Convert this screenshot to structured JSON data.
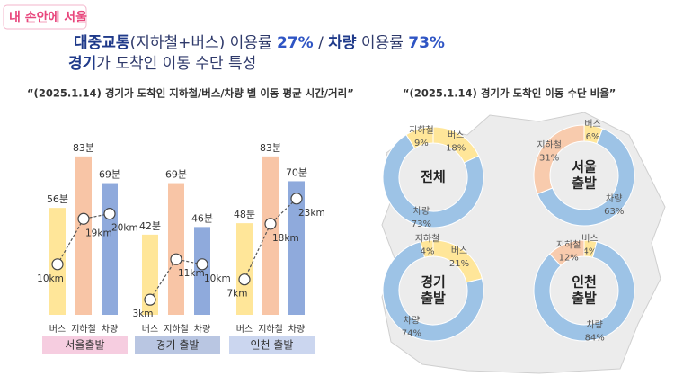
{
  "header": {
    "logo": "내 손안에 서울",
    "title_lines": [
      [
        {
          "text": "대중교통",
          "emphasis": "navy"
        },
        {
          "text": "(지하철+버스) 이용률 ",
          "emphasis": "plain"
        },
        {
          "text": "27%",
          "emphasis": "blue"
        },
        {
          "text": " / ",
          "emphasis": "plain"
        },
        {
          "text": "차량",
          "emphasis": "navy"
        },
        {
          "text": " 이용률 ",
          "emphasis": "plain"
        },
        {
          "text": "73%",
          "emphasis": "blue"
        }
      ],
      [
        {
          "text": "경기",
          "emphasis": "navy"
        },
        {
          "text": "가 도착인 이동 수단 특성",
          "emphasis": "plain"
        }
      ]
    ]
  },
  "chart_data": [
    {
      "type": "bar",
      "title": "“(2025.1.14) 경기가 도착인 지하철/버스/차량 별 이동 평균 시간/거리”",
      "categories": [
        "서울출발",
        "경기 출발",
        "인천 출발"
      ],
      "category_colors": [
        "#f6cde0",
        "#b9c6e2",
        "#cbd6ef"
      ],
      "series": [
        {
          "name": "버스",
          "color": "#ffe699",
          "values": [
            56,
            42,
            48
          ],
          "value_labels": [
            "56분",
            "42분",
            "48분"
          ]
        },
        {
          "name": "지하철",
          "color": "#f8c5a6",
          "values": [
            83,
            69,
            83
          ],
          "value_labels": [
            "83분",
            "69분",
            "83분"
          ]
        },
        {
          "name": "차량",
          "color": "#8faadc",
          "values": [
            69,
            46,
            70
          ],
          "value_labels": [
            "69분",
            "46분",
            "70분"
          ]
        }
      ],
      "ylim": [
        0,
        90
      ],
      "lines": [
        {
          "axis": "y2",
          "values": [
            10,
            19,
            20
          ],
          "value_labels": [
            "10km",
            "19km",
            "20km"
          ]
        },
        {
          "axis": "y2",
          "values": [
            3,
            11,
            10
          ],
          "value_labels": [
            "3km",
            "11km",
            "10km"
          ]
        },
        {
          "axis": "y2",
          "values": [
            7,
            18,
            23
          ],
          "value_labels": [
            "7km",
            "18km",
            "23km"
          ]
        }
      ],
      "y2lim": [
        0,
        34
      ]
    },
    {
      "type": "donut",
      "title": "“(2025.1.14) 경기가 도착인 이동 수단 비율”",
      "charts": [
        {
          "label_lines": [
            "전체"
          ],
          "segments": [
            {
              "name": "버스",
              "value": 18,
              "value_label": "18%",
              "color": "#ffe699"
            },
            {
              "name": "차량",
              "value": 73,
              "value_label": "73%",
              "color": "#9dc3e6"
            },
            {
              "name": "지하철",
              "value": 9,
              "value_label": "9%",
              "color": "#ffe699"
            }
          ]
        },
        {
          "label_lines": [
            "서울",
            "출발"
          ],
          "segments": [
            {
              "name": "버스",
              "value": 6,
              "value_label": "6%",
              "color": "#ffe699"
            },
            {
              "name": "차량",
              "value": 63,
              "value_label": "63%",
              "color": "#9dc3e6"
            },
            {
              "name": "지하철",
              "value": 31,
              "value_label": "31%",
              "color": "#f8cbad"
            }
          ]
        },
        {
          "label_lines": [
            "경기",
            "출발"
          ],
          "segments": [
            {
              "name": "버스",
              "value": 21,
              "value_label": "21%",
              "color": "#ffe699"
            },
            {
              "name": "차량",
              "value": 74,
              "value_label": "74%",
              "color": "#9dc3e6"
            },
            {
              "name": "지하철",
              "value": 4,
              "value_label": "4%",
              "color": "#ffe699"
            }
          ]
        },
        {
          "label_lines": [
            "인천",
            "출발"
          ],
          "segments": [
            {
              "name": "버스",
              "value": 4,
              "value_label": "4%",
              "color": "#ffe699"
            },
            {
              "name": "차량",
              "value": 84,
              "value_label": "84%",
              "color": "#9dc3e6"
            },
            {
              "name": "지하철",
              "value": 12,
              "value_label": "12%",
              "color": "#f8cbad"
            }
          ]
        }
      ]
    }
  ]
}
